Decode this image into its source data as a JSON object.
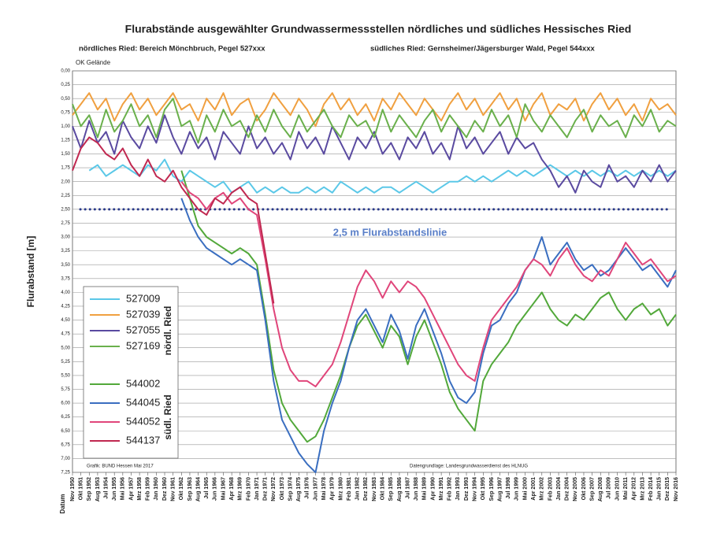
{
  "chart_data": {
    "type": "line",
    "title": "Flurabstände ausgewählter Grundwassermessstellen nördliches und südliches Hessisches Ried",
    "subtitle_left": "nördliches Ried: Bereich Mönchbruch, Pegel 527xxx",
    "subtitle_right": "südliches Ried: Gernsheimer/Jägersburger Wald, Pegel 544xxx",
    "top_label": "OK Gelände",
    "ylabel": "Flurabstand [m]",
    "xlabel": "Datum",
    "credit_left": "Grafik: BUND Hessen Mai 2017",
    "credit_right": "Datengrundlage: Landesgrundwasserdienst des HLNUG",
    "reference_line": {
      "value": 2.5,
      "label": "2,5 m Flurabstandslinie",
      "color": "#2a3a8a"
    },
    "legend_groups": [
      "nördl. Ried",
      "südl. Ried"
    ],
    "y_inverted": true,
    "grid": true,
    "ylim": [
      0,
      7.25
    ],
    "yticks": [
      {
        "value": 0,
        "label": "0,00"
      },
      {
        "value": 0.25,
        "label": "0,25"
      },
      {
        "value": 0.5,
        "label": "0,50"
      },
      {
        "value": 0.75,
        "label": "0,75"
      },
      {
        "value": 1,
        "label": "1,00"
      },
      {
        "value": 1.25,
        "label": "1,25"
      },
      {
        "value": 1.5,
        "label": "1,50"
      },
      {
        "value": 1.75,
        "label": "1,75"
      },
      {
        "value": 2,
        "label": "2,00"
      },
      {
        "value": 2.25,
        "label": "2,25"
      },
      {
        "value": 2.5,
        "label": "2,50"
      },
      {
        "value": 2.75,
        "label": "2,75"
      },
      {
        "value": 3,
        "label": "3,00"
      },
      {
        "value": 3.25,
        "label": "3,25"
      },
      {
        "value": 3.5,
        "label": "3,50"
      },
      {
        "value": 3.75,
        "label": "3,75"
      },
      {
        "value": 4,
        "label": "4,00"
      },
      {
        "value": 4.25,
        "label": "4,25"
      },
      {
        "value": 4.5,
        "label": "4,50"
      },
      {
        "value": 4.75,
        "label": "4,75"
      },
      {
        "value": 5,
        "label": "5,00"
      },
      {
        "value": 5.25,
        "label": "5,25"
      },
      {
        "value": 5.5,
        "label": "5,50"
      },
      {
        "value": 5.75,
        "label": "5,75"
      },
      {
        "value": 6,
        "label": "6,00"
      },
      {
        "value": 6.25,
        "label": "6,25"
      },
      {
        "value": 6.5,
        "label": "6,50"
      },
      {
        "value": 6.75,
        "label": "6,75"
      },
      {
        "value": 7,
        "label": "7,00"
      },
      {
        "value": 7.25,
        "label": "7,25"
      }
    ],
    "categories": [
      "Nov 1950",
      "Okt 1951",
      "Sep 1952",
      "Aug 1953",
      "Jul 1954",
      "Jun 1955",
      "Mai 1956",
      "Apr 1957",
      "Mrz 1958",
      "Feb 1959",
      "Jan 1960",
      "Dez 1960",
      "Nov 1961",
      "Okt 1962",
      "Sep 1963",
      "Aug 1964",
      "Jul 1965",
      "Jun 1966",
      "Mai 1967",
      "Apr 1968",
      "Mrz 1969",
      "Feb 1970",
      "Jan 1971",
      "Dez 1971",
      "Nov 1972",
      "Okt 1973",
      "Sep 1974",
      "Aug 1975",
      "Jul 1976",
      "Jun 1977",
      "Mai 1978",
      "Apr 1979",
      "Mrz 1980",
      "Feb 1981",
      "Jan 1982",
      "Dez 1982",
      "Nov 1983",
      "Okt 1984",
      "Sep 1985",
      "Aug 1986",
      "Jul 1987",
      "Jun 1988",
      "Mai 1989",
      "Apr 1990",
      "Mrz 1991",
      "Feb 1992",
      "Jan 1993",
      "Dez 1993",
      "Nov 1994",
      "Okt 1995",
      "Sep 1996",
      "Aug 1997",
      "Jul 1998",
      "Jun 1999",
      "Mai 2000",
      "Apr 2001",
      "Mrz 2002",
      "Feb 2003",
      "Jan 2004",
      "Dez 2004",
      "Nov 2005",
      "Okt 2006",
      "Sep 2007",
      "Aug 2008",
      "Jul 2009",
      "Jun 2010",
      "Mai 2011",
      "Apr 2012",
      "Mrz 2013",
      "Feb 2014",
      "Jan 2015",
      "Dez 2015",
      "Nov 2016"
    ],
    "series": [
      {
        "name": "527009",
        "color": "#5bc8e8",
        "values": [
          null,
          null,
          1.8,
          1.7,
          1.9,
          1.8,
          1.7,
          1.8,
          1.9,
          1.7,
          1.8,
          1.6,
          1.9,
          2.0,
          1.8,
          1.9,
          2.0,
          2.1,
          2.0,
          2.2,
          2.1,
          2.0,
          2.2,
          2.1,
          2.2,
          2.1,
          2.2,
          2.2,
          2.1,
          2.2,
          2.1,
          2.2,
          2.0,
          2.1,
          2.2,
          2.1,
          2.2,
          2.1,
          2.1,
          2.2,
          2.1,
          2.0,
          2.1,
          2.2,
          2.1,
          2.0,
          2.0,
          1.9,
          2.0,
          1.9,
          2.0,
          1.9,
          1.8,
          1.9,
          1.8,
          1.9,
          1.8,
          1.7,
          1.8,
          1.9,
          1.8,
          1.9,
          1.8,
          1.9,
          1.8,
          1.9,
          1.8,
          1.9,
          1.8,
          1.9,
          1.8,
          1.9,
          1.8
        ]
      },
      {
        "name": "527039",
        "color": "#f0a040",
        "values": [
          0.8,
          0.6,
          0.4,
          0.7,
          0.5,
          0.9,
          0.6,
          0.4,
          0.7,
          0.5,
          0.8,
          0.6,
          0.4,
          0.7,
          0.6,
          0.9,
          0.5,
          0.7,
          0.4,
          0.8,
          0.6,
          0.5,
          0.9,
          0.7,
          0.4,
          0.6,
          0.8,
          0.5,
          0.7,
          1.0,
          0.6,
          0.4,
          0.7,
          0.5,
          0.8,
          0.6,
          0.9,
          0.5,
          0.7,
          0.4,
          0.6,
          0.8,
          0.5,
          0.7,
          0.9,
          0.6,
          0.4,
          0.7,
          0.5,
          0.8,
          0.6,
          0.4,
          0.7,
          0.5,
          0.9,
          0.6,
          0.4,
          0.8,
          0.6,
          0.7,
          0.5,
          0.9,
          0.6,
          0.4,
          0.7,
          0.5,
          0.8,
          0.6,
          0.9,
          0.5,
          0.7,
          0.6,
          0.8
        ]
      },
      {
        "name": "527055",
        "color": "#5a4aa0",
        "values": [
          1.0,
          1.4,
          0.9,
          1.3,
          1.1,
          1.5,
          0.9,
          1.2,
          1.4,
          1.0,
          1.3,
          0.8,
          1.2,
          1.5,
          1.1,
          1.4,
          1.2,
          1.6,
          1.1,
          1.3,
          1.5,
          1.0,
          1.4,
          1.2,
          1.5,
          1.3,
          1.6,
          1.1,
          1.4,
          1.2,
          1.5,
          1.0,
          1.3,
          1.6,
          1.2,
          1.4,
          1.1,
          1.5,
          1.3,
          1.6,
          1.2,
          1.4,
          1.1,
          1.5,
          1.3,
          1.6,
          1.0,
          1.4,
          1.2,
          1.5,
          1.3,
          1.1,
          1.5,
          1.2,
          1.4,
          1.3,
          1.6,
          1.8,
          2.1,
          1.9,
          2.2,
          1.8,
          2.0,
          2.1,
          1.7,
          2.0,
          1.9,
          2.1,
          1.8,
          2.0,
          1.7,
          2.0,
          1.8
        ]
      },
      {
        "name": "527169",
        "color": "#6ab04c",
        "values": [
          0.6,
          1.0,
          0.8,
          1.2,
          0.7,
          1.1,
          0.9,
          0.6,
          1.0,
          0.8,
          1.2,
          0.7,
          0.5,
          1.0,
          0.9,
          1.3,
          0.8,
          1.1,
          0.7,
          1.0,
          0.9,
          1.2,
          0.8,
          1.1,
          0.7,
          1.0,
          1.2,
          0.8,
          1.1,
          0.9,
          0.7,
          1.0,
          1.2,
          0.8,
          1.0,
          0.9,
          1.2,
          0.7,
          1.1,
          0.8,
          1.0,
          1.2,
          0.9,
          0.7,
          1.1,
          0.8,
          1.0,
          1.2,
          0.9,
          1.1,
          0.7,
          1.0,
          0.8,
          1.2,
          0.6,
          0.9,
          1.1,
          0.8,
          1.0,
          1.2,
          0.9,
          0.7,
          1.1,
          0.8,
          1.0,
          0.9,
          1.2,
          0.8,
          1.0,
          0.7,
          1.1,
          0.9,
          1.0
        ]
      },
      {
        "name": "544002",
        "color": "#52a83a",
        "values": [
          null,
          null,
          null,
          null,
          null,
          null,
          null,
          null,
          null,
          null,
          null,
          null,
          null,
          1.8,
          2.3,
          2.8,
          3.0,
          3.1,
          3.2,
          3.3,
          3.2,
          3.3,
          3.5,
          4.4,
          5.4,
          6.0,
          6.3,
          6.5,
          6.7,
          6.6,
          6.3,
          5.9,
          5.5,
          5.0,
          4.6,
          4.4,
          4.7,
          5.0,
          4.6,
          4.8,
          5.3,
          4.8,
          4.5,
          4.9,
          5.3,
          5.8,
          6.1,
          6.3,
          6.5,
          5.6,
          5.3,
          5.1,
          4.9,
          4.6,
          4.4,
          4.2,
          4.0,
          4.3,
          4.5,
          4.6,
          4.4,
          4.5,
          4.3,
          4.1,
          4.0,
          4.3,
          4.5,
          4.3,
          4.2,
          4.4,
          4.3,
          4.6,
          4.4
        ]
      },
      {
        "name": "544045",
        "color": "#3a6ec0",
        "values": [
          null,
          null,
          null,
          null,
          null,
          null,
          null,
          null,
          null,
          null,
          null,
          null,
          null,
          2.3,
          2.7,
          3.0,
          3.2,
          3.3,
          3.4,
          3.5,
          3.4,
          3.5,
          3.6,
          4.5,
          5.6,
          6.3,
          6.6,
          6.9,
          7.1,
          7.25,
          6.5,
          6.0,
          5.6,
          5.0,
          4.5,
          4.3,
          4.6,
          4.9,
          4.4,
          4.7,
          5.2,
          4.6,
          4.3,
          4.7,
          5.1,
          5.6,
          5.9,
          6.0,
          5.8,
          5.1,
          4.6,
          4.5,
          4.2,
          4.0,
          3.6,
          3.4,
          3.0,
          3.5,
          3.3,
          3.1,
          3.4,
          3.6,
          3.5,
          3.7,
          3.6,
          3.4,
          3.2,
          3.4,
          3.6,
          3.5,
          3.7,
          3.9,
          3.6
        ]
      },
      {
        "name": "544052",
        "color": "#e0457a",
        "values": [
          null,
          null,
          null,
          null,
          null,
          null,
          null,
          null,
          null,
          null,
          null,
          null,
          null,
          2.0,
          2.2,
          2.3,
          2.5,
          2.3,
          2.2,
          2.4,
          2.3,
          2.5,
          2.6,
          3.4,
          4.3,
          5.0,
          5.4,
          5.6,
          5.6,
          5.7,
          5.5,
          5.3,
          4.9,
          4.4,
          3.9,
          3.6,
          3.8,
          4.1,
          3.8,
          4.0,
          3.8,
          3.9,
          4.1,
          4.4,
          4.7,
          5.0,
          5.3,
          5.5,
          5.6,
          5.0,
          4.5,
          4.3,
          4.1,
          3.9,
          3.6,
          3.4,
          3.5,
          3.7,
          3.4,
          3.2,
          3.5,
          3.7,
          3.8,
          3.6,
          3.7,
          3.4,
          3.1,
          3.3,
          3.5,
          3.4,
          3.6,
          3.8,
          3.7
        ]
      },
      {
        "name": "544137",
        "color": "#c02850",
        "values": [
          1.8,
          1.4,
          1.2,
          1.3,
          1.5,
          1.6,
          1.4,
          1.7,
          1.9,
          1.6,
          1.9,
          2.0,
          1.8,
          2.1,
          2.3,
          2.5,
          2.6,
          2.3,
          2.4,
          2.2,
          2.1,
          2.3,
          2.4,
          3.3,
          4.2,
          null,
          null,
          null,
          null,
          null,
          null,
          null,
          null,
          null,
          null,
          null,
          null,
          null,
          null,
          null,
          null,
          null,
          null,
          null,
          null,
          null,
          null,
          null,
          null,
          null,
          null,
          null,
          null,
          null,
          null,
          null,
          null,
          null,
          null,
          null,
          null,
          null,
          null,
          null,
          null,
          null,
          null,
          null,
          null,
          null,
          null,
          null,
          null
        ]
      }
    ]
  }
}
